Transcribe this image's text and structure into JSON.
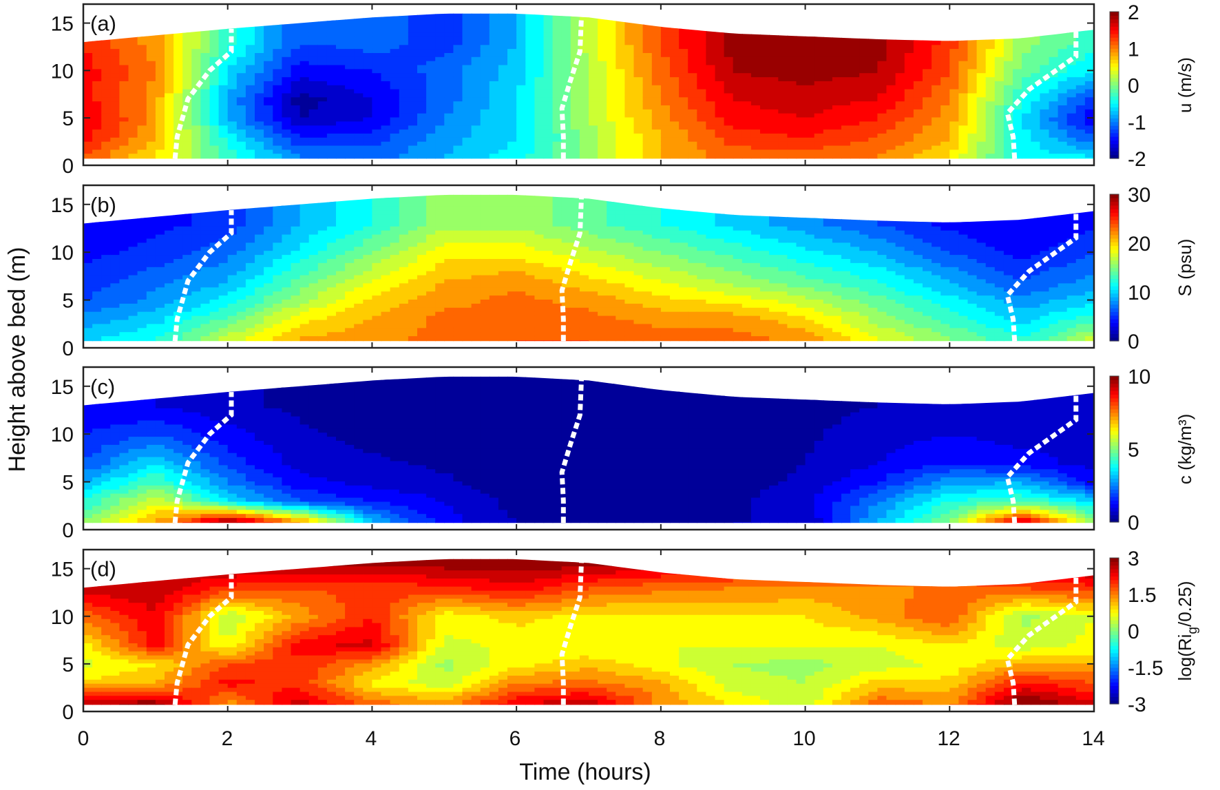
{
  "figure": {
    "xlabel": "Time (hours)",
    "ylabel": "Height above bed (m)",
    "xticks": [
      "0",
      "2",
      "4",
      "6",
      "8",
      "10",
      "12",
      "14"
    ],
    "yticks": [
      "0",
      "5",
      "10",
      "15"
    ]
  },
  "chart_data": {
    "type": "heatmap",
    "title": "",
    "xlabel": "Time (hours)",
    "ylabel": "Height above bed (m)",
    "xlim": [
      0,
      14
    ],
    "ylim": [
      0,
      17
    ],
    "grid": false,
    "colormap": "jet",
    "x_hours": [
      0,
      1,
      2,
      3,
      4,
      5,
      6,
      7,
      8,
      9,
      10,
      11,
      12,
      13,
      14
    ],
    "z_levels_m": [
      1,
      3,
      5,
      7,
      10,
      13,
      16
    ],
    "water_surface_m": [
      13.0,
      13.7,
      14.4,
      15.0,
      15.6,
      16.0,
      16.0,
      15.6,
      14.6,
      13.9,
      13.6,
      13.3,
      13.1,
      13.4,
      14.3
    ],
    "bottom_m": 0.7,
    "dashed_lines_hours": [
      {
        "name": "slack-1",
        "points": [
          [
            1.27,
            0.7
          ],
          [
            1.3,
            3
          ],
          [
            1.45,
            7
          ],
          [
            1.75,
            10
          ],
          [
            2.05,
            12
          ],
          [
            2.05,
            14.4
          ]
        ]
      },
      {
        "name": "slack-2",
        "points": [
          [
            6.65,
            0.7
          ],
          [
            6.65,
            3
          ],
          [
            6.63,
            6
          ],
          [
            6.75,
            9
          ],
          [
            6.88,
            12
          ],
          [
            6.9,
            15.7
          ]
        ]
      },
      {
        "name": "slack-3",
        "points": [
          [
            12.9,
            0.7
          ],
          [
            12.88,
            3
          ],
          [
            12.8,
            5.5
          ],
          [
            13.1,
            8
          ],
          [
            13.75,
            11.5
          ],
          [
            13.75,
            14.1
          ]
        ]
      }
    ],
    "panels": [
      {
        "label": "(a)",
        "variable": "u",
        "colorbar_label": "u (m/s)",
        "clim": [
          -2,
          2
        ],
        "colorbar_ticks": [
          "2",
          "1",
          "0",
          "-1",
          "-2"
        ],
        "values": [
          [
            1.2,
            1.5,
            1.6,
            1.5,
            1.5,
            1.4,
            1.3
          ],
          [
            0.6,
            0.8,
            0.9,
            0.9,
            1.0,
            0.9,
            0.9
          ],
          [
            -0.3,
            -0.5,
            -0.8,
            -0.8,
            -0.6,
            -0.3,
            -0.3
          ],
          [
            -1.0,
            -1.4,
            -1.8,
            -1.9,
            -1.5,
            -1.2,
            -1.2
          ],
          [
            -1.1,
            -1.3,
            -1.6,
            -1.6,
            -1.4,
            -1.1,
            -1.1
          ],
          [
            -0.8,
            -0.9,
            -1.0,
            -1.1,
            -1.1,
            -1.3,
            -1.3
          ],
          [
            -0.5,
            -0.6,
            -0.6,
            -0.6,
            -0.7,
            -0.8,
            -0.8
          ],
          [
            0.1,
            0.1,
            0.2,
            0.2,
            0.2,
            0.3,
            0.3
          ],
          [
            0.8,
            0.8,
            0.9,
            1.0,
            1.1,
            1.2,
            1.2
          ],
          [
            1.1,
            1.3,
            1.5,
            1.6,
            1.8,
            1.9,
            1.9
          ],
          [
            1.1,
            1.4,
            1.6,
            1.7,
            1.9,
            2.0,
            2.0
          ],
          [
            1.0,
            1.2,
            1.4,
            1.6,
            1.8,
            1.9,
            1.9
          ],
          [
            0.6,
            0.8,
            0.9,
            1.0,
            1.2,
            1.3,
            1.3
          ],
          [
            -0.5,
            -0.5,
            -0.6,
            -0.4,
            -0.1,
            0.1,
            0.1
          ],
          [
            -0.6,
            -1.2,
            -1.6,
            -1.3,
            -0.6,
            -0.3,
            -0.3
          ]
        ]
      },
      {
        "label": "(b)",
        "variable": "S",
        "colorbar_label": "S (psu)",
        "clim": [
          0,
          30
        ],
        "colorbar_ticks": [
          "30",
          "20",
          "10",
          "0"
        ],
        "values": [
          [
            10,
            8,
            6,
            5,
            4,
            3,
            3
          ],
          [
            12,
            10,
            8,
            7,
            5,
            4,
            4
          ],
          [
            17,
            14,
            11,
            9,
            7,
            5,
            5
          ],
          [
            21,
            19,
            16,
            14,
            11,
            9,
            9
          ],
          [
            22,
            21,
            20,
            18,
            15,
            12,
            12
          ],
          [
            23,
            23,
            22,
            21,
            19,
            16,
            16
          ],
          [
            24,
            23,
            23,
            22,
            19,
            16,
            16
          ],
          [
            24,
            23,
            22,
            20,
            17,
            14,
            14
          ],
          [
            23,
            22,
            20,
            18,
            15,
            12,
            12
          ],
          [
            23,
            22,
            19,
            16,
            13,
            10,
            10
          ],
          [
            22,
            20,
            17,
            14,
            11,
            8,
            8
          ],
          [
            18,
            16,
            14,
            12,
            9,
            6,
            6
          ],
          [
            15,
            13,
            11,
            9,
            6,
            4,
            4
          ],
          [
            12,
            10,
            8,
            6,
            4,
            3,
            3
          ],
          [
            17,
            13,
            10,
            8,
            6,
            4,
            4
          ]
        ]
      },
      {
        "label": "(c)",
        "variable": "c",
        "colorbar_label": "c (kg/m³)",
        "clim": [
          0,
          10
        ],
        "colorbar_ticks": [
          "10",
          "5",
          "0"
        ],
        "values": [
          [
            5.0,
            4.0,
            3.0,
            2.0,
            1.5,
            1.0,
            1.0
          ],
          [
            7.0,
            6.0,
            4.5,
            3.5,
            2.0,
            1.0,
            1.0
          ],
          [
            9.5,
            3.5,
            2.5,
            1.8,
            1.2,
            0.6,
            0.6
          ],
          [
            7.0,
            2.0,
            1.2,
            0.8,
            0.6,
            0.4,
            0.4
          ],
          [
            3.0,
            1.5,
            0.8,
            0.6,
            0.3,
            0.2,
            0.2
          ],
          [
            1.2,
            1.0,
            0.6,
            0.4,
            0.2,
            0.2,
            0.2
          ],
          [
            0.5,
            0.3,
            0.2,
            0.2,
            0.2,
            0.2,
            0.2
          ],
          [
            0.3,
            0.2,
            0.2,
            0.2,
            0.2,
            0.2,
            0.2
          ],
          [
            0.3,
            0.2,
            0.2,
            0.2,
            0.2,
            0.2,
            0.2
          ],
          [
            0.5,
            0.4,
            0.3,
            0.2,
            0.2,
            0.2,
            0.2
          ],
          [
            0.5,
            0.8,
            0.6,
            0.5,
            0.4,
            0.3,
            0.3
          ],
          [
            3.0,
            2.5,
            1.5,
            1.0,
            0.8,
            0.5,
            0.5
          ],
          [
            5.0,
            4.0,
            2.8,
            1.5,
            1.0,
            0.6,
            0.6
          ],
          [
            9.0,
            4.5,
            3.0,
            1.2,
            0.8,
            0.6,
            0.6
          ],
          [
            5.0,
            3.5,
            1.2,
            0.8,
            1.0,
            0.9,
            0.9
          ]
        ]
      },
      {
        "label": "(d)",
        "variable": "log(Ri_g/0.25)",
        "colorbar_label": "log(Ri_g/0.25)",
        "colorbar_title_parts": {
          "pre": "log(Ri",
          "sub": "g",
          "post": "/0.25)"
        },
        "clim": [
          -3,
          3
        ],
        "colorbar_ticks": [
          "3",
          "1.5",
          "0",
          "-1.5",
          "-3"
        ],
        "values": [
          [
            2.6,
            1.0,
            0.5,
            0.8,
            1.6,
            2.6,
            2.9
          ],
          [
            2.8,
            1.2,
            0.9,
            2.2,
            2.4,
            2.6,
            2.9
          ],
          [
            1.4,
            2.2,
            1.8,
            0.6,
            0.3,
            2.0,
            3.0
          ],
          [
            2.5,
            2.0,
            2.0,
            2.3,
            1.3,
            1.8,
            3.0
          ],
          [
            1.6,
            0.8,
            1.4,
            2.5,
            2.1,
            1.9,
            3.0
          ],
          [
            1.3,
            0.4,
            0.2,
            0.5,
            0.7,
            2.0,
            3.0
          ],
          [
            2.3,
            1.5,
            0.8,
            0.7,
            1.0,
            2.3,
            3.0
          ],
          [
            2.6,
            1.6,
            1.1,
            0.6,
            0.8,
            1.8,
            3.0
          ],
          [
            1.4,
            1.3,
            0.7,
            0.6,
            0.8,
            1.6,
            2.8
          ],
          [
            0.8,
            0.4,
            0.3,
            0.6,
            0.9,
            1.5,
            2.6
          ],
          [
            0.4,
            0.3,
            0.2,
            0.6,
            0.9,
            1.4,
            2.5
          ],
          [
            1.7,
            1.0,
            0.4,
            0.6,
            1.3,
            1.4,
            2.4
          ],
          [
            1.4,
            1.0,
            0.7,
            0.9,
            1.8,
            1.6,
            2.4
          ],
          [
            3.0,
            2.2,
            1.2,
            0.4,
            0.2,
            1.8,
            2.8
          ],
          [
            2.4,
            1.8,
            1.2,
            0.7,
            0.6,
            2.0,
            3.0
          ]
        ]
      }
    ]
  }
}
